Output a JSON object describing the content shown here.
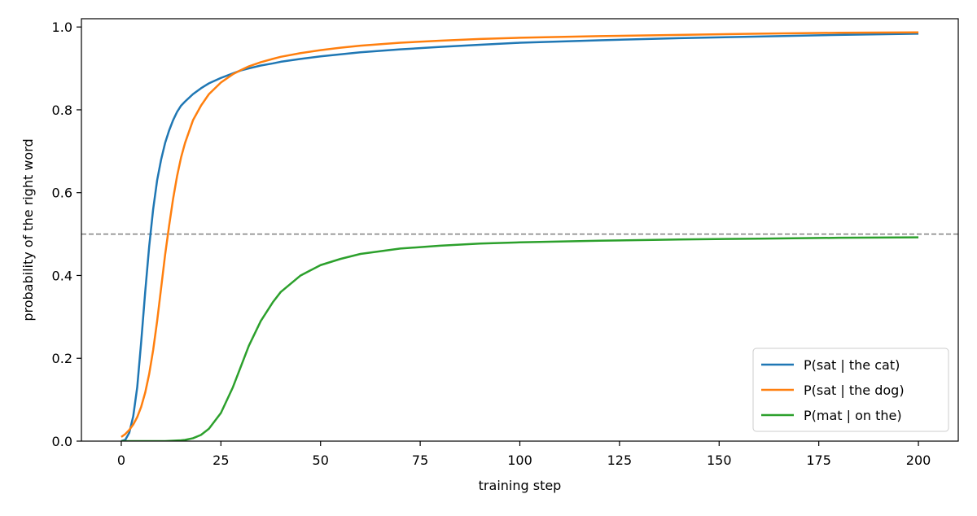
{
  "chart_data": {
    "type": "line",
    "title": "",
    "xlabel": "training step",
    "ylabel": "probability of the right word",
    "xlim": [
      -10,
      210
    ],
    "ylim": [
      0,
      1.02
    ],
    "xticks": [
      0,
      25,
      50,
      75,
      100,
      125,
      150,
      175,
      200
    ],
    "xtick_labels": [
      "0",
      "25",
      "50",
      "75",
      "100",
      "125",
      "150",
      "175",
      "200"
    ],
    "yticks": [
      0,
      0.2,
      0.4,
      0.6,
      0.8,
      1.0
    ],
    "ytick_labels": [
      "0.0",
      "0.2",
      "0.4",
      "0.6",
      "0.8",
      "1.0"
    ],
    "grid": false,
    "legend_position": "lower-right",
    "reference_line": {
      "y": 0.5,
      "style": "dashed",
      "color": "#808080"
    },
    "x": [
      0,
      1,
      2,
      3,
      4,
      5,
      6,
      7,
      8,
      9,
      10,
      11,
      12,
      13,
      14,
      15,
      16,
      18,
      20,
      22,
      25,
      28,
      30,
      32,
      35,
      38,
      40,
      45,
      50,
      55,
      60,
      70,
      80,
      90,
      100,
      120,
      140,
      160,
      180,
      200
    ],
    "series": [
      {
        "name": "P(sat | the cat)",
        "color": "#1f77b4",
        "values": [
          0.0,
          0.003,
          0.02,
          0.06,
          0.13,
          0.24,
          0.36,
          0.47,
          0.56,
          0.63,
          0.68,
          0.72,
          0.75,
          0.775,
          0.795,
          0.81,
          0.82,
          0.838,
          0.852,
          0.864,
          0.877,
          0.888,
          0.895,
          0.9,
          0.907,
          0.912,
          0.916,
          0.923,
          0.929,
          0.934,
          0.939,
          0.946,
          0.952,
          0.957,
          0.962,
          0.968,
          0.973,
          0.977,
          0.981,
          0.984
        ]
      },
      {
        "name": "P(sat | the dog)",
        "color": "#ff7f0e",
        "values": [
          0.01,
          0.017,
          0.027,
          0.04,
          0.058,
          0.083,
          0.117,
          0.162,
          0.22,
          0.29,
          0.37,
          0.45,
          0.52,
          0.585,
          0.64,
          0.685,
          0.72,
          0.775,
          0.81,
          0.838,
          0.866,
          0.886,
          0.896,
          0.905,
          0.915,
          0.923,
          0.928,
          0.937,
          0.944,
          0.95,
          0.955,
          0.962,
          0.967,
          0.971,
          0.974,
          0.978,
          0.981,
          0.984,
          0.986,
          0.987
        ]
      },
      {
        "name": "P(mat | on the)",
        "color": "#2ca02c",
        "values": [
          0.0,
          0.0,
          0.0,
          0.0,
          0.0,
          0.0,
          0.0,
          0.0,
          0.0,
          0.0,
          0.0,
          0.0,
          0.0005,
          0.001,
          0.0015,
          0.002,
          0.003,
          0.007,
          0.015,
          0.03,
          0.068,
          0.13,
          0.18,
          0.23,
          0.29,
          0.335,
          0.36,
          0.4,
          0.425,
          0.44,
          0.452,
          0.465,
          0.472,
          0.477,
          0.48,
          0.484,
          0.487,
          0.489,
          0.491,
          0.492
        ]
      }
    ]
  }
}
